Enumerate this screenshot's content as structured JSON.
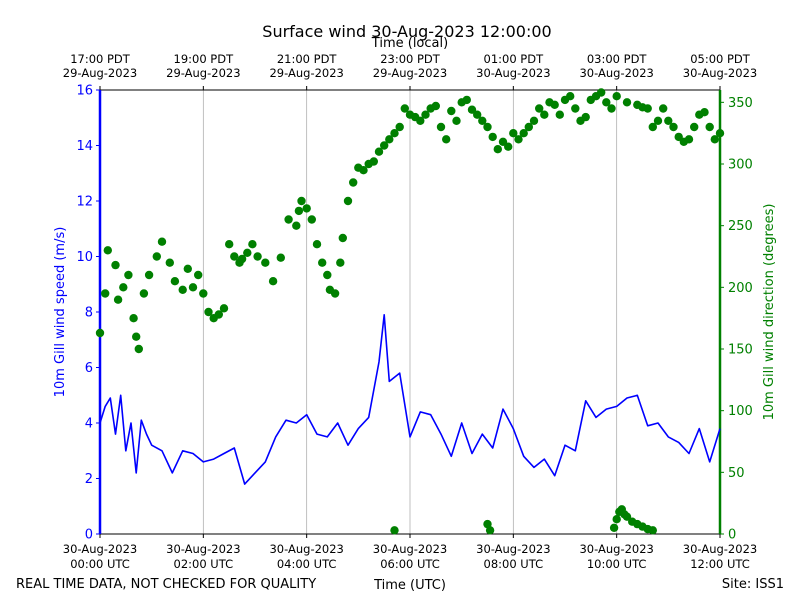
{
  "chart_data": {
    "type": "line+scatter",
    "title": "Surface wind 30-Aug-2023 12:00:00",
    "top_axis_label": "Time (local)",
    "bottom_axis_label": "Time (UTC)",
    "footer_left": "REAL TIME DATA, NOT CHECKED FOR QUALITY",
    "footer_right": "Site: ISS1",
    "x_range_hours": [
      0,
      12
    ],
    "x_grid": true,
    "bottom_ticks": [
      {
        "hour": 0,
        "line1": "30-Aug-2023",
        "line2": "00:00 UTC"
      },
      {
        "hour": 2,
        "line1": "30-Aug-2023",
        "line2": "02:00 UTC"
      },
      {
        "hour": 4,
        "line1": "30-Aug-2023",
        "line2": "04:00 UTC"
      },
      {
        "hour": 6,
        "line1": "30-Aug-2023",
        "line2": "06:00 UTC"
      },
      {
        "hour": 8,
        "line1": "30-Aug-2023",
        "line2": "08:00 UTC"
      },
      {
        "hour": 10,
        "line1": "30-Aug-2023",
        "line2": "10:00 UTC"
      },
      {
        "hour": 12,
        "line1": "30-Aug-2023",
        "line2": "12:00 UTC"
      }
    ],
    "top_ticks": [
      {
        "hour": 0,
        "line1": "17:00 PDT",
        "line2": "29-Aug-2023"
      },
      {
        "hour": 2,
        "line1": "19:00 PDT",
        "line2": "29-Aug-2023"
      },
      {
        "hour": 4,
        "line1": "21:00 PDT",
        "line2": "29-Aug-2023"
      },
      {
        "hour": 6,
        "line1": "23:00 PDT",
        "line2": "29-Aug-2023"
      },
      {
        "hour": 8,
        "line1": "01:00 PDT",
        "line2": "30-Aug-2023"
      },
      {
        "hour": 10,
        "line1": "03:00 PDT",
        "line2": "30-Aug-2023"
      },
      {
        "hour": 12,
        "line1": "05:00 PDT",
        "line2": "30-Aug-2023"
      }
    ],
    "left_axis": {
      "label": "10m Gill wind speed (m/s)",
      "color": "#0000ff",
      "ylim": [
        0,
        16
      ],
      "ticks": [
        "0",
        "2",
        "4",
        "6",
        "8",
        "10",
        "12",
        "14",
        "16"
      ]
    },
    "right_axis": {
      "label": "10m Gill wind direction (degrees)",
      "color": "#008000",
      "ylim": [
        0,
        360
      ],
      "ticks": [
        "0",
        "50",
        "100",
        "150",
        "200",
        "250",
        "300",
        "350"
      ]
    },
    "series": [
      {
        "name": "wind speed",
        "axis": "left",
        "style": "line",
        "color": "#0000ff",
        "x": [
          0.0,
          0.1,
          0.2,
          0.3,
          0.4,
          0.5,
          0.6,
          0.7,
          0.8,
          0.9,
          1.0,
          1.2,
          1.4,
          1.6,
          1.8,
          2.0,
          2.2,
          2.4,
          2.6,
          2.8,
          3.0,
          3.2,
          3.4,
          3.6,
          3.8,
          4.0,
          4.2,
          4.4,
          4.6,
          4.8,
          5.0,
          5.2,
          5.4,
          5.5,
          5.6,
          5.8,
          6.0,
          6.2,
          6.4,
          6.6,
          6.8,
          7.0,
          7.2,
          7.4,
          7.6,
          7.8,
          8.0,
          8.2,
          8.4,
          8.6,
          8.8,
          9.0,
          9.2,
          9.4,
          9.6,
          9.8,
          10.0,
          10.2,
          10.4,
          10.6,
          10.8,
          11.0,
          11.2,
          11.4,
          11.6,
          11.8,
          12.0
        ],
        "values": [
          4.0,
          4.6,
          4.9,
          3.6,
          5.0,
          3.0,
          4.0,
          2.2,
          4.1,
          3.6,
          3.2,
          3.0,
          2.2,
          3.0,
          2.9,
          2.6,
          2.7,
          2.9,
          3.1,
          1.8,
          2.2,
          2.6,
          3.5,
          4.1,
          4.0,
          4.3,
          3.6,
          3.5,
          4.0,
          3.2,
          3.8,
          4.2,
          6.2,
          7.9,
          5.5,
          5.8,
          3.5,
          4.4,
          4.3,
          3.6,
          2.8,
          4.0,
          2.9,
          3.6,
          3.1,
          4.5,
          3.8,
          2.8,
          2.4,
          2.7,
          2.1,
          3.2,
          3.0,
          4.8,
          4.2,
          4.5,
          4.6,
          4.9,
          5.0,
          3.9,
          4.0,
          3.5,
          3.3,
          2.9,
          3.8,
          2.6,
          3.8
        ]
      },
      {
        "name": "wind direction",
        "axis": "right",
        "style": "scatter",
        "color": "#008000",
        "x": [
          0.0,
          0.1,
          0.15,
          0.3,
          0.35,
          0.45,
          0.55,
          0.65,
          0.7,
          0.75,
          0.85,
          0.95,
          1.1,
          1.2,
          1.35,
          1.45,
          1.6,
          1.7,
          1.8,
          1.9,
          2.0,
          2.1,
          2.2,
          2.3,
          2.4,
          2.5,
          2.6,
          2.7,
          2.75,
          2.85,
          2.95,
          3.05,
          3.2,
          3.35,
          3.5,
          3.65,
          3.8,
          3.85,
          3.9,
          4.0,
          4.1,
          4.2,
          4.3,
          4.4,
          4.45,
          4.55,
          4.65,
          4.7,
          4.8,
          4.9,
          5.0,
          5.1,
          5.2,
          5.3,
          5.4,
          5.5,
          5.6,
          5.7,
          5.8,
          5.9,
          6.0,
          6.1,
          6.2,
          6.3,
          6.4,
          6.5,
          6.6,
          6.7,
          6.8,
          6.9,
          7.0,
          7.1,
          7.2,
          7.3,
          7.4,
          7.5,
          7.6,
          7.7,
          7.8,
          7.9,
          8.0,
          8.1,
          8.2,
          8.3,
          8.4,
          8.5,
          8.6,
          8.7,
          8.8,
          8.9,
          9.0,
          9.1,
          9.2,
          9.3,
          9.4,
          9.5,
          9.6,
          9.7,
          9.8,
          9.9,
          10.0,
          10.2,
          10.4,
          10.5,
          10.6,
          10.7,
          10.8,
          10.9,
          11.0,
          11.1,
          11.2,
          11.3,
          11.4,
          11.5,
          11.6,
          11.7,
          11.8,
          11.9,
          12.0,
          5.7,
          7.5,
          7.55,
          9.95,
          10.0,
          10.05,
          10.1,
          10.15,
          10.2,
          10.3,
          10.4,
          10.5,
          10.6,
          10.7
        ],
        "values": [
          163,
          195,
          230,
          218,
          190,
          200,
          210,
          175,
          160,
          150,
          195,
          210,
          225,
          237,
          220,
          205,
          198,
          215,
          200,
          210,
          195,
          180,
          175,
          178,
          183,
          235,
          225,
          220,
          223,
          228,
          235,
          225,
          220,
          205,
          224,
          255,
          250,
          262,
          270,
          264,
          255,
          235,
          220,
          210,
          198,
          195,
          220,
          240,
          270,
          285,
          297,
          295,
          300,
          302,
          310,
          315,
          320,
          325,
          330,
          345,
          340,
          338,
          335,
          340,
          345,
          347,
          330,
          320,
          343,
          335,
          350,
          352,
          344,
          340,
          335,
          330,
          322,
          312,
          318,
          314,
          325,
          320,
          325,
          330,
          335,
          345,
          340,
          350,
          348,
          340,
          352,
          355,
          345,
          335,
          338,
          352,
          355,
          358,
          350,
          345,
          355,
          350,
          348,
          346,
          345,
          330,
          335,
          345,
          335,
          330,
          322,
          318,
          320,
          330,
          340,
          342,
          330,
          320,
          325,
          3,
          8,
          3,
          5,
          12,
          18,
          20,
          16,
          14,
          10,
          8,
          6,
          4,
          3
        ]
      }
    ]
  }
}
